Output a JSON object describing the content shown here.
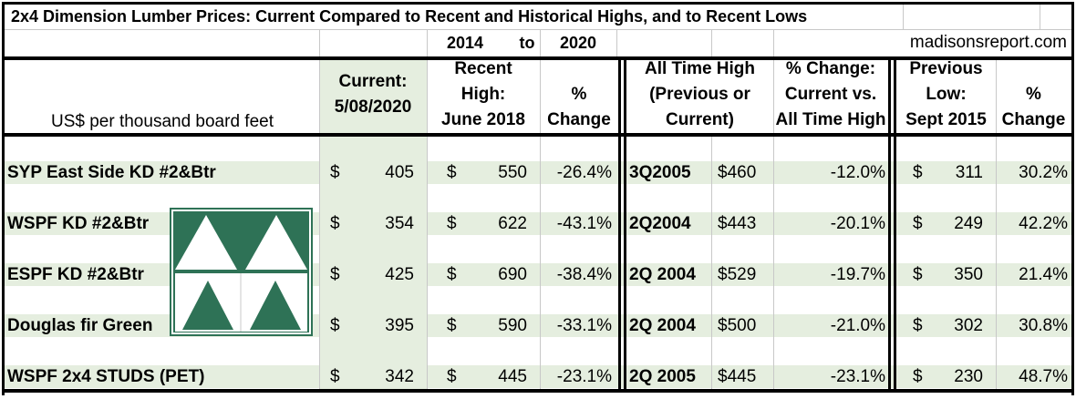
{
  "table": {
    "title": "2x4 Dimension Lumber Prices: Current Compared to Recent and Historical Highs, and to Recent Lows",
    "range_from": "2014",
    "range_to_word": "to",
    "range_to": "2020",
    "source": "madisonsreport.com",
    "unit_label": "US$ per thousand board feet",
    "headers": {
      "current": [
        "Current:",
        "5/08/2020"
      ],
      "recent_high": [
        "Recent",
        "High:",
        "June 2018"
      ],
      "pct_change": [
        "%",
        "Change"
      ],
      "all_time_high": [
        "All Time High",
        "(Previous or",
        "Current)"
      ],
      "ath_change": [
        "% Change:",
        "Current vs.",
        "All Time High"
      ],
      "prev_low": [
        "Previous",
        "Low:",
        "Sept 2015"
      ],
      "low_change": [
        "%",
        "Change"
      ]
    },
    "currency": "$",
    "rows": [
      {
        "name": "SYP East Side KD #2&Btr",
        "current": "405",
        "recent_high": "550",
        "recent_change": "-26.4%",
        "ath_period": "3Q2005",
        "ath_price": "$460",
        "ath_change": "-12.0%",
        "prev_low": "311",
        "low_change": "30.2%"
      },
      {
        "name": "WSPF KD #2&Btr",
        "current": "354",
        "recent_high": "622",
        "recent_change": "-43.1%",
        "ath_period": "2Q2004",
        "ath_price": "$443",
        "ath_change": "-20.1%",
        "prev_low": "249",
        "low_change": "42.2%"
      },
      {
        "name": "ESPF KD #2&Btr",
        "current": "425",
        "recent_high": "690",
        "recent_change": "-38.4%",
        "ath_period": "2Q 2004",
        "ath_price": "$529",
        "ath_change": "-19.7%",
        "prev_low": "350",
        "low_change": "21.4%"
      },
      {
        "name": "Douglas fir Green",
        "current": "395",
        "recent_high": "590",
        "recent_change": "-33.1%",
        "ath_period": "2Q 2004",
        "ath_price": "$500",
        "ath_change": "-21.0%",
        "prev_low": "302",
        "low_change": "30.8%"
      },
      {
        "name": "WSPF 2x4 STUDS (PET)",
        "current": "342",
        "recent_high": "445",
        "recent_change": "-23.1%",
        "ath_period": "2Q 2005",
        "ath_price": "$445",
        "ath_change": "-23.1%",
        "prev_low": "230",
        "low_change": "48.7%"
      }
    ]
  },
  "colors": {
    "band": "#e5eedf",
    "logo_green": "#2e7256",
    "grid": "#c8c8c8",
    "border": "#000000"
  },
  "chart_data": {
    "type": "table",
    "title": "2x4 Dimension Lumber Prices: Current Compared to Recent and Historical Highs, and to Recent Lows",
    "columns": [
      "US$ per thousand board feet",
      "Current: 5/08/2020",
      "Recent High: June 2018",
      "% Change",
      "All Time High (Previous or Current)",
      "All Time High price",
      "% Change: Current vs. All Time High",
      "Previous Low: Sept 2015",
      "% Change"
    ],
    "rows": [
      [
        "SYP East Side KD #2&Btr",
        405,
        550,
        -26.4,
        "3Q2005",
        460,
        -12.0,
        311,
        30.2
      ],
      [
        "WSPF KD #2&Btr",
        354,
        622,
        -43.1,
        "2Q2004",
        443,
        -20.1,
        249,
        42.2
      ],
      [
        "ESPF KD #2&Btr",
        425,
        690,
        -38.4,
        "2Q 2004",
        529,
        -19.7,
        350,
        21.4
      ],
      [
        "Douglas fir Green",
        395,
        590,
        -33.1,
        "2Q 2004",
        500,
        -21.0,
        302,
        30.8
      ],
      [
        "WSPF 2x4 STUDS (PET)",
        342,
        445,
        -23.1,
        "2Q 2005",
        445,
        -23.1,
        230,
        48.7
      ]
    ]
  }
}
